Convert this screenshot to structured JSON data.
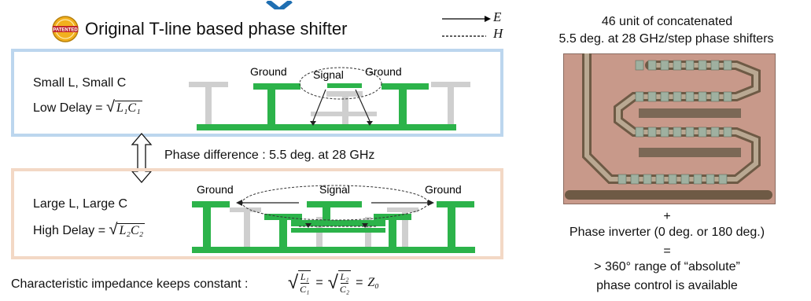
{
  "colors": {
    "accent_blue": "#1f6fb2",
    "trace_green": "#2cb34a",
    "ghost_gray": "#cfcfcf",
    "panel_blue_border": "#bcd6ee",
    "panel_orange_border": "#f3d8c5",
    "badge_gold": "#f2b01e",
    "badge_red": "#c0262c"
  },
  "header": {
    "badge_text": "PATENTED",
    "title": "Original T-line based phase shifter",
    "legend_e_label": "E",
    "legend_h_label": "H"
  },
  "panel_small": {
    "line1": "Small L, Small C",
    "line2_prefix": "Low Delay =",
    "sqrt_expr": "L₁C₁",
    "label_ground_left": "Ground",
    "label_signal": "Signal",
    "label_ground_right": "Ground"
  },
  "middle": {
    "phase_difference": "Phase difference : 5.5 deg. at 28 GHz"
  },
  "panel_large": {
    "line1": "Large L, Large C",
    "line2_prefix": "High Delay =",
    "sqrt_expr": "L₂C₂",
    "label_ground_left": "Ground",
    "label_signal": "Signal",
    "label_ground_right": "Ground"
  },
  "footer": {
    "impedance_text": "Characteristic impedance keeps constant :",
    "frac1_num": "L₁",
    "frac1_den": "C₁",
    "frac2_num": "L₂",
    "frac2_den": "C₂",
    "equals": "=",
    "z0": "Z₀"
  },
  "right": {
    "caption_line1": "46 unit of concatenated",
    "caption_line2": "5.5 deg. at 28 GHz/step phase shifters",
    "plus": "+",
    "inverter": "Phase inverter (0 deg. or 180 deg.)",
    "equals": "=",
    "range_line1": "> 360° range of “absolute”",
    "range_line2": "phase control is available"
  }
}
